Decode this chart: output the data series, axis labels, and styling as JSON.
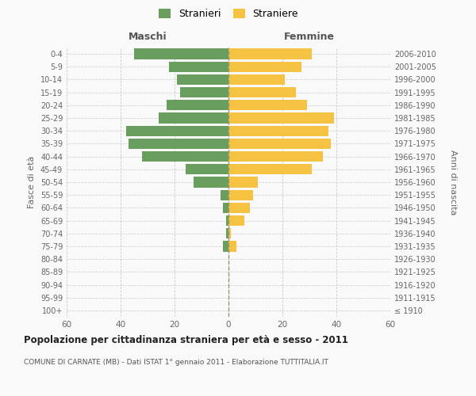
{
  "age_groups": [
    "100+",
    "95-99",
    "90-94",
    "85-89",
    "80-84",
    "75-79",
    "70-74",
    "65-69",
    "60-64",
    "55-59",
    "50-54",
    "45-49",
    "40-44",
    "35-39",
    "30-34",
    "25-29",
    "20-24",
    "15-19",
    "10-14",
    "5-9",
    "0-4"
  ],
  "birth_years": [
    "≤ 1910",
    "1911-1915",
    "1916-1920",
    "1921-1925",
    "1926-1930",
    "1931-1935",
    "1936-1940",
    "1941-1945",
    "1946-1950",
    "1951-1955",
    "1956-1960",
    "1961-1965",
    "1966-1970",
    "1971-1975",
    "1976-1980",
    "1981-1985",
    "1986-1990",
    "1991-1995",
    "1996-2000",
    "2001-2005",
    "2006-2010"
  ],
  "males": [
    0,
    0,
    0,
    0,
    0,
    2,
    1,
    1,
    2,
    3,
    13,
    16,
    32,
    37,
    38,
    26,
    23,
    18,
    19,
    22,
    35
  ],
  "females": [
    0,
    0,
    0,
    0,
    0,
    3,
    1,
    6,
    8,
    9,
    11,
    31,
    35,
    38,
    37,
    39,
    29,
    25,
    21,
    27,
    31
  ],
  "male_color": "#6a9e5e",
  "female_color": "#f5c242",
  "background_color": "#f9f9f9",
  "grid_color": "#cccccc",
  "title": "Popolazione per cittadinanza straniera per età e sesso - 2011",
  "subtitle": "COMUNE DI CARNATE (MB) - Dati ISTAT 1° gennaio 2011 - Elaborazione TUTTITALIA.IT",
  "ylabel_left": "Fasce di età",
  "ylabel_right": "Anni di nascita",
  "header_left": "Maschi",
  "header_right": "Femmine",
  "legend_male": "Stranieri",
  "legend_female": "Straniere",
  "xlim": 60,
  "xticks": [
    -60,
    -40,
    -20,
    0,
    20,
    40,
    60
  ],
  "xtick_labels": [
    "60",
    "40",
    "20",
    "0",
    "20",
    "40",
    "60"
  ]
}
